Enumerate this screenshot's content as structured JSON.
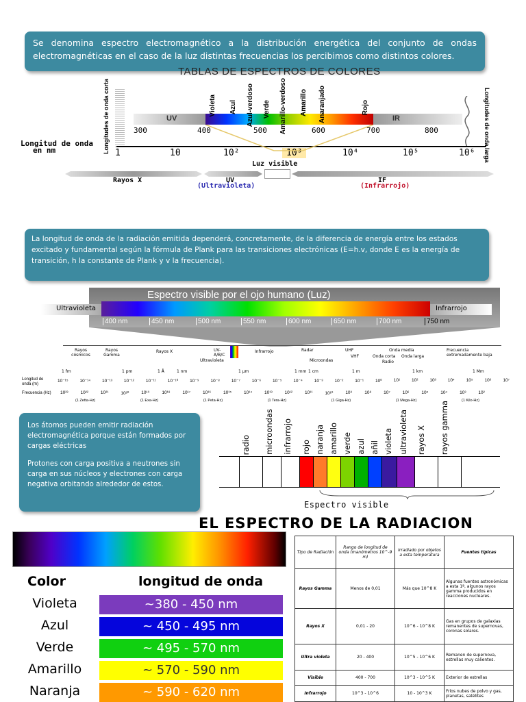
{
  "callout1": {
    "text": "Se denomina espectro electromagnético a la distribución energética del conjunto de ondas electromagnéticas en el caso de la luz distintas frecuencias los percibimos como distintos colores."
  },
  "diagram1": {
    "title": "TABLAS DE ESPECTROS DE COLORES",
    "nm_ticks": [
      "300",
      "400",
      "500",
      "600",
      "700",
      "800"
    ],
    "band_uv": "UV",
    "band_ir": "IR",
    "left_vertical": "Longitudes de onda corta",
    "right_vertical": "Longitudes de onda larga",
    "color_labels": [
      "Violeta",
      "Azul",
      "Azul-verdoso",
      "Verde",
      "Amarillo-verdoso",
      "Amarillo",
      "Anaranjado",
      "Rojo"
    ],
    "axis_label_1": "Longitud de onda",
    "axis_label_2": "en nm",
    "power_base": "10",
    "powers": [
      "1",
      "10",
      "10²",
      "10³",
      "10⁴",
      "10⁵",
      "10⁶"
    ],
    "luz_visible": "Luz visible",
    "rayos_x": "Rayos X",
    "uv": "UV",
    "uv_full": "(Ultravioleta)",
    "ir": "IF",
    "ir_full": "(Infrarrojo)"
  },
  "callout2": {
    "text": "La longitud de onda de la radiación emitida dependerá, concretamente, de la diferencia de energía entre los estados excitado y fundamental según la fórmula de Plank para las transiciones electrónicas (E=h.v, donde E es la energía de transición, h la constante de Plank y v la frecuencia)."
  },
  "diagram2": {
    "title": "Espectro visible por el ojo humano (Luz)",
    "left_label": "Ultravioleta",
    "right_label": "Infrarrojo",
    "nm_labels": [
      "400 nm",
      "450 nm",
      "500 nm",
      "550 nm",
      "600 nm",
      "650 nm",
      "700 nm",
      "750 nm"
    ],
    "categories": [
      "Rayos cósmicos",
      "Rayos Gamma",
      "Rayos X",
      "UV- A/B/C",
      "Ultravioleta",
      "Infrarrojo",
      "Radar",
      "Microondas",
      "UHF",
      "VHF",
      "Onda corta",
      "Onda media",
      "Onda larga",
      "Radio",
      "Frecuencia extremadamente baja"
    ],
    "units": [
      "1 fm",
      "1 pm",
      "1 Å",
      "1 nm",
      "1 μm",
      "1 mm",
      "1 cm",
      "1 m",
      "1 km",
      "1 Mm"
    ],
    "row1_label": "Longitud de onda (m)",
    "row1": [
      "10⁻¹⁵",
      "10⁻¹⁴",
      "10⁻¹³",
      "10⁻¹²",
      "10⁻¹¹",
      "10⁻¹⁰",
      "10⁻⁹",
      "10⁻⁸",
      "10⁻⁷",
      "10⁻⁶",
      "10⁻⁵",
      "10⁻⁴",
      "10⁻³",
      "10⁻²",
      "10⁻¹",
      "10⁰",
      "10¹",
      "10²",
      "10³",
      "10⁴",
      "10⁵",
      "10⁶",
      "10⁷"
    ],
    "row2_label": "Frecuencia (Hz)",
    "row2": [
      "10²³",
      "10²²",
      "10²¹",
      "10²⁰",
      "10¹⁹",
      "10¹⁸",
      "10¹⁷",
      "10¹⁶",
      "10¹⁵",
      "10¹⁴",
      "10¹³",
      "10¹²",
      "10¹¹",
      "10¹⁰",
      "10⁹",
      "10⁸",
      "10⁷",
      "10⁶",
      "10⁵",
      "10⁴",
      "10³",
      "10²"
    ],
    "row2_units": [
      "(1 Zetta-Hz)",
      "(1 Exa-Hz)",
      "(1 Peta-Hz)",
      "(1 Tera-Hz)",
      "(1 Giga-Hz)",
      "(1 Mega-Hz)",
      "(1 Kilo-Hz)"
    ]
  },
  "callout3": {
    "p1": "Los átomos pueden emitir radiación electromagnética porque están formados por cargas eléctricas",
    "p2": "Protones con carga positiva a neutrones sin carga en sus núcleos y electrones con carga negativa orbitando alrededor de estos."
  },
  "diagram3": {
    "labels": [
      "radio",
      "microondas",
      "infrarrojo",
      "rojo",
      "naranja",
      "amarillo",
      "verde",
      "azul",
      "añil",
      "violeta",
      "ultravioleta",
      "rayos X",
      "rayos gamma"
    ],
    "caption": "Espectro visible"
  },
  "heading": "EL ESPECTRO DE LA RADIACION",
  "colors_table": {
    "col1": "Color",
    "col2": "longitud de onda",
    "rows": [
      {
        "name": "Violeta",
        "range": "~380 - 450 nm",
        "color": "#7b3bbd"
      },
      {
        "name": "Azul",
        "range": "~ 450 - 495 nm",
        "color": "#0505dc"
      },
      {
        "name": "Verde",
        "range": "~ 495 - 570 nm",
        "color": "#10d010"
      },
      {
        "name": "Amarillo",
        "range": "~ 570 - 590 nm",
        "color": "#ffff00"
      },
      {
        "name": "Naranja",
        "range": "~ 590 - 620 nm",
        "color": "#ff9900"
      }
    ]
  },
  "radiation_table": {
    "headers": [
      "Tipo de Radiación",
      "Rango de longitud de onda (manómetros 10^-9 m)",
      "Irradiado por objetos a esta temperatura",
      "Fuentes típicas"
    ],
    "rows": [
      [
        "Rayos Gamma",
        "Menos de 0,01",
        "Más que 10^8 K",
        "Algunas fuentes astronómicas a esta 1ª, algunos rayos gamma producidos en reacciones nucleares."
      ],
      [
        "Rayos X",
        "0,01 - 20",
        "10^6 - 10^8 K",
        "Gas en grupos de galaxias remanentes de supernovas, coronas solares."
      ],
      [
        "Ultra violeta",
        "20 - 400",
        "10^5 - 10^6 K",
        "Remanen de supernova, estrellas muy calientes."
      ],
      [
        "Visible",
        "400 - 700",
        "10^3 - 10^5 K",
        "Exterior de estrellas"
      ],
      [
        "Infrarrojo",
        "10^3 - 10^6",
        "10 - 10^3 K",
        "Fríos nubes de polvo y gas, planetas, satélites"
      ]
    ]
  }
}
